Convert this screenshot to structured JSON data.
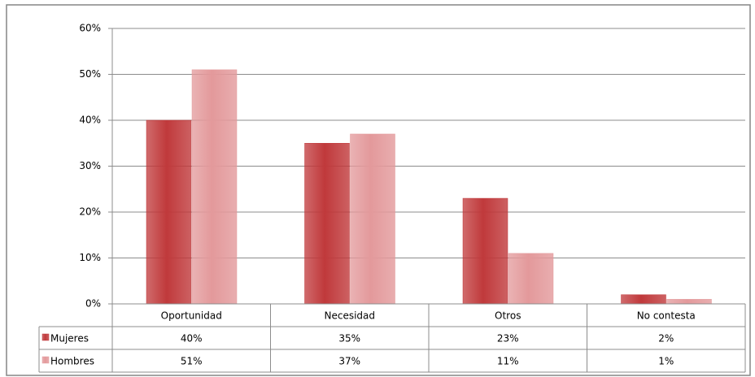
{
  "chart_data": {
    "type": "bar",
    "categories": [
      "Oportunidad",
      "Necesidad",
      "Otros",
      "No contesta"
    ],
    "series": [
      {
        "name": "Mujeres",
        "color": "#c0393b",
        "values": [
          40,
          35,
          23,
          2
        ],
        "value_labels": [
          "40%",
          "35%",
          "23%",
          "2%"
        ]
      },
      {
        "name": "Hombres",
        "color": "#e3999b",
        "values": [
          51,
          37,
          11,
          1
        ],
        "value_labels": [
          "51%",
          "37%",
          "11%",
          "1%"
        ]
      }
    ],
    "ylim": [
      0,
      60
    ],
    "yticks": [
      {
        "value": 0,
        "label": "0%"
      },
      {
        "value": 10,
        "label": "10%"
      },
      {
        "value": 20,
        "label": "20%"
      },
      {
        "value": 30,
        "label": "30%"
      },
      {
        "value": 40,
        "label": "40%"
      },
      {
        "value": 50,
        "label": "50%"
      },
      {
        "value": 60,
        "label": "60%"
      }
    ],
    "grid": true
  }
}
